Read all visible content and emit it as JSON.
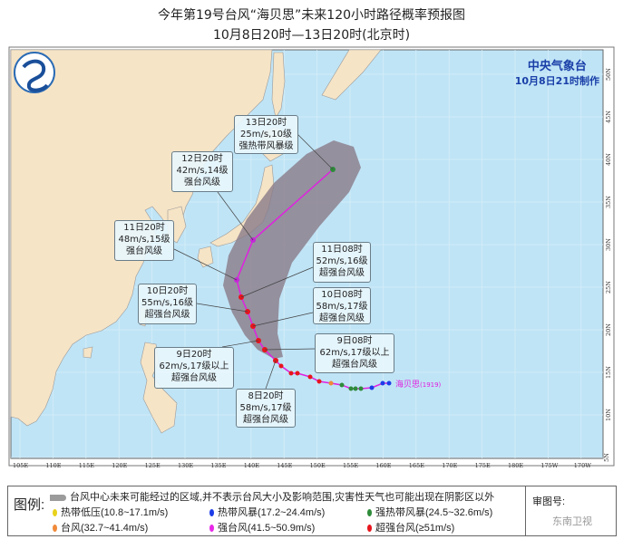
{
  "header": {
    "title": "今年第19号台风“海贝思”未来120小时路径概率预报图",
    "subtitle": "10月8日20时—13日20时(北京时)"
  },
  "issuer": {
    "name": "中央气象台",
    "issued": "10月8日21时制作"
  },
  "typhoon": {
    "name": "海贝思",
    "number": "(1919)"
  },
  "axes": {
    "longitudes": [
      "105E",
      "110E",
      "115E",
      "120E",
      "125E",
      "130E",
      "135E",
      "140E",
      "145E",
      "150E",
      "155E",
      "160E",
      "165E",
      "170E",
      "175E",
      "180E",
      "175W",
      "170W"
    ],
    "latitudes": [
      "50N",
      "45N",
      "40N",
      "35N",
      "30N",
      "25N",
      "20N",
      "15N",
      "10N",
      "5N"
    ]
  },
  "forecast_points": [
    {
      "time": "8日20时",
      "wind": "58m/s,17级",
      "category": "超强台风级",
      "color": "#e8141c"
    },
    {
      "time": "9日08时",
      "wind": "62m/s,17级以上",
      "category": "超强台风级",
      "color": "#e8141c"
    },
    {
      "time": "9日20时",
      "wind": "62m/s,17级以上",
      "category": "超强台风级",
      "color": "#e8141c"
    },
    {
      "time": "10日08时",
      "wind": "58m/s,17级",
      "category": "超强台风级",
      "color": "#e8141c"
    },
    {
      "time": "10日20时",
      "wind": "55m/s,16级",
      "category": "超强台风级",
      "color": "#e8141c"
    },
    {
      "time": "11日08时",
      "wind": "52m/s,16级",
      "category": "超强台风级",
      "color": "#e8141c"
    },
    {
      "time": "11日20时",
      "wind": "48m/s,15级",
      "category": "强台风级",
      "color": "#c428d8"
    },
    {
      "time": "12日20时",
      "wind": "42m/s,14级",
      "category": "强台风级",
      "color": "#c428d8"
    },
    {
      "time": "13日20时",
      "wind": "25m/s,10级",
      "category": "强热带风暴级",
      "color": "#2e8b3a"
    }
  ],
  "legend": {
    "label": "图例:",
    "cone": "台风中心未来可能经过的区域,并不表示台风大小及影响范围,灾害性天气也可能出现在阴影区以外",
    "items": [
      {
        "label": "热带低压(10.8~17.1m/s)",
        "color": "#e8d21c"
      },
      {
        "label": "热带风暴(17.2~24.4m/s)",
        "color": "#1c3ce8"
      },
      {
        "label": "强热带风暴(24.5~32.6m/s)",
        "color": "#2e8b3a"
      },
      {
        "label": "台风(32.7~41.4m/s)",
        "color": "#f08a3a"
      },
      {
        "label": "强台风(41.5~50.9m/s)",
        "color": "#e828e8"
      },
      {
        "label": "超强台风(≥51m/s)",
        "color": "#e8141c"
      }
    ],
    "review_label": "审图号:",
    "watermark": "东南卫视"
  },
  "colors": {
    "sea": "#bfe4f6",
    "land": "#f6e4c6",
    "cone": "#8a7b88",
    "track": "#e020e0"
  }
}
